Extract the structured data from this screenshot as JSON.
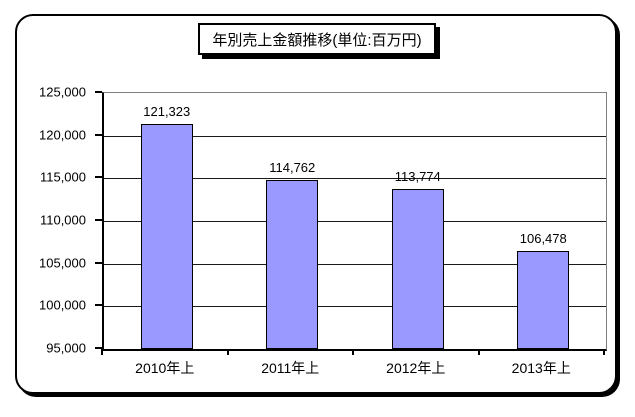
{
  "chart_data": {
    "type": "bar",
    "title": "年別売上金額推移(単位:百万円)",
    "categories": [
      "2010年上",
      "2011年上",
      "2012年上",
      "2013年上"
    ],
    "values": [
      121323,
      114762,
      113774,
      106478
    ],
    "value_labels": [
      "121,323",
      "114,762",
      "113,774",
      "106,478"
    ],
    "ylim": [
      95000,
      125000
    ],
    "y_tick_step": 5000,
    "y_tick_labels": [
      "125,000",
      "120,000",
      "115,000",
      "110,000",
      "105,000",
      "100,000",
      "95,000"
    ],
    "xlabel": "",
    "ylabel": "",
    "grid": true,
    "legend_position": "none",
    "bar_color": "#9999FF",
    "bar_border_color": "#000000",
    "background_color": "#FFFFFF"
  }
}
